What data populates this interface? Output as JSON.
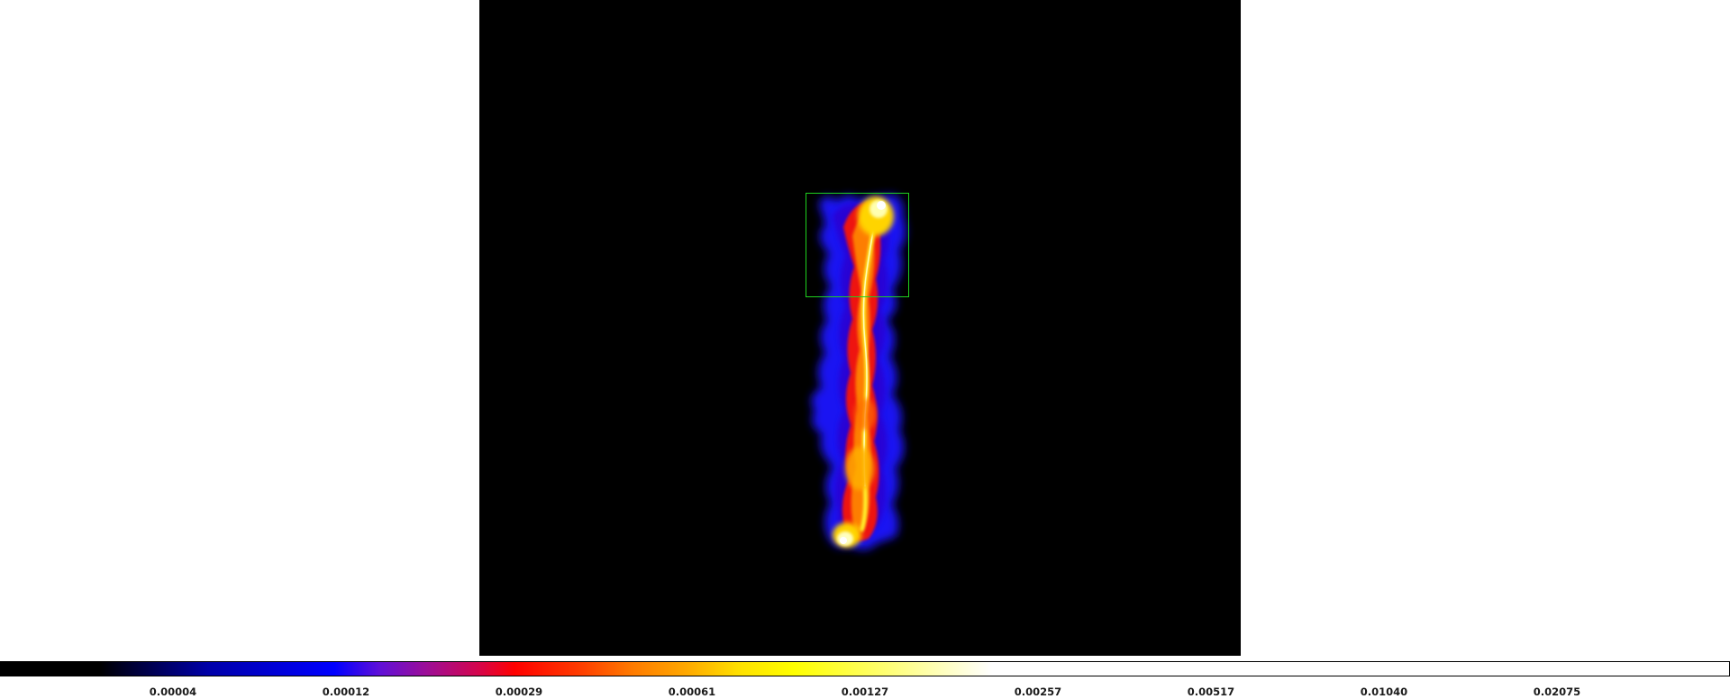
{
  "image": {
    "background_color": "#000000",
    "colormap": "heat",
    "region_color": "#1fd11f",
    "region_shape": "box"
  },
  "colorbar": {
    "tick_labels": [
      "0.00004",
      "0.00012",
      "0.00029",
      "0.00061",
      "0.00127",
      "0.00257",
      "0.00517",
      "0.01040",
      "0.02075"
    ],
    "colors": [
      "#000000",
      "#0000ff",
      "#ff0000",
      "#ffff00",
      "#ffffff"
    ]
  }
}
